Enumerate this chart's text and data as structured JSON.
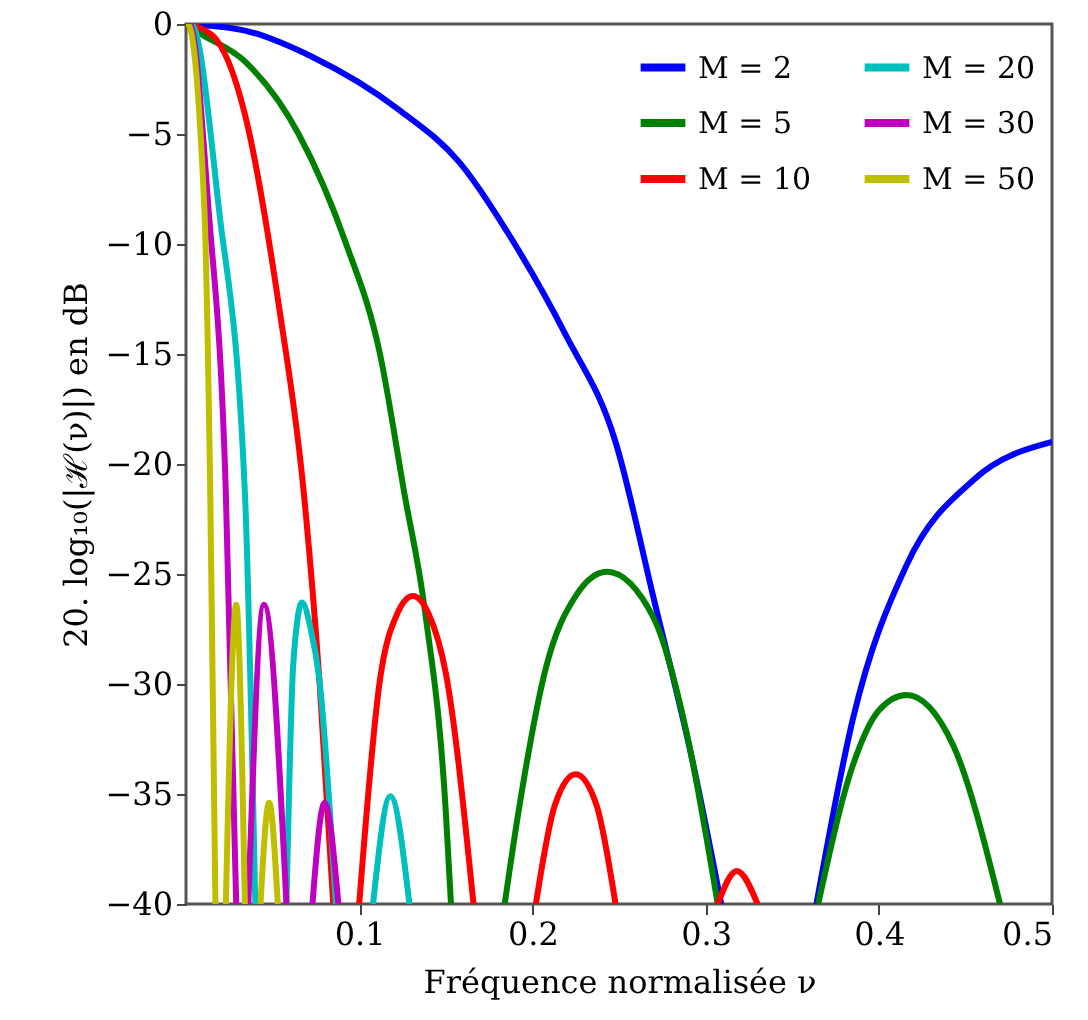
{
  "chart_data": {
    "type": "line",
    "xlabel": "Fréquence normalisée ν",
    "ylabel": "20. log₁₀(|ℋ(ν)|) en dB",
    "xlim": [
      0,
      0.5
    ],
    "ylim": [
      -40,
      0
    ],
    "xticks": [
      0.1,
      0.2,
      0.3,
      0.4,
      0.5
    ],
    "yticks": [
      0,
      -5,
      -10,
      -15,
      -20,
      -25,
      -30,
      -35,
      -40
    ],
    "grid": false,
    "legend": "top right",
    "marker": "none",
    "line_style": "solid",
    "series": [
      {
        "name": "M = 2",
        "color": "#0000ff",
        "x": [
          0,
          0.034,
          0.073,
          0.123,
          0.158,
          0.189,
          0.219,
          0.248,
          0.27,
          0.293,
          0.309,
          0.33,
          0.364,
          0.385,
          0.416,
          0.455,
          0.5
        ],
        "values": [
          0,
          -0.3,
          -1.5,
          -3.9,
          -6.3,
          -9.9,
          -14.1,
          -19,
          -26.1,
          -33.7,
          -40,
          null,
          -40,
          -31.6,
          -24.6,
          -20.7,
          -19
        ]
      },
      {
        "name": "M = 5",
        "color": "#008000",
        "x": [
          0,
          0.0075,
          0.034,
          0.065,
          0.092,
          0.112,
          0.126,
          0.138,
          0.15,
          0.153,
          0.17,
          0.184,
          0.192,
          0.208,
          0.225,
          0.243,
          0.27,
          0.289,
          0.307,
          0.33,
          0.365,
          0.385,
          0.4,
          0.416,
          0.443,
          0.47
        ],
        "values": [
          0,
          -0.4,
          -1.7,
          -5,
          -9.9,
          -15,
          -21.3,
          -26.7,
          -35.8,
          -40,
          null,
          -40,
          -35.8,
          -29.2,
          -26,
          -24.9,
          -27,
          -32.2,
          -40,
          null,
          -40,
          -33.7,
          -31.2,
          -30.5,
          -32.8,
          -40
        ]
      },
      {
        "name": "M = 10",
        "color": "#ff0000",
        "x": [
          0,
          0.015,
          0.034,
          0.054,
          0.068,
          0.077,
          0.085,
          0.092,
          0.1,
          0.112,
          0.122,
          0.131,
          0.14,
          0.15,
          0.166,
          0.185,
          0.202,
          0.213,
          0.225,
          0.237,
          0.248,
          0.28,
          0.307,
          0.318,
          0.33
        ],
        "values": [
          0,
          -0.5,
          -4.1,
          -13,
          -21.3,
          -29.8,
          -40,
          null,
          -40,
          -29.8,
          -26.8,
          -26,
          -26.8,
          -29.5,
          -40,
          null,
          -40,
          -35.5,
          -34.1,
          -35.5,
          -40,
          null,
          -40,
          -38.5,
          -40
        ]
      },
      {
        "name": "M = 20",
        "color": "#00bfbf",
        "x": [
          0,
          0.003,
          0.019,
          0.034,
          0.04,
          0.049,
          0.058,
          0.062,
          0.067,
          0.072,
          0.077,
          0.0865,
          0.097,
          0.108,
          0.118,
          0.129
        ],
        "values": [
          0,
          0,
          -8.4,
          -21.3,
          -40,
          null,
          -40,
          -29,
          -26.3,
          -27.5,
          -29.8,
          -40,
          null,
          -40,
          -35.1,
          -40
        ]
      },
      {
        "name": "M = 30",
        "color": "#bf00bf",
        "x": [
          0,
          0.002,
          0.013,
          0.023,
          0.029,
          0.032,
          0.036,
          0.045,
          0.058,
          0.065,
          0.073,
          0.08,
          0.088
        ],
        "values": [
          0,
          0,
          -8.4,
          -21.3,
          -40,
          null,
          -40,
          -26.4,
          -40,
          null,
          -40,
          -35.4,
          -40
        ]
      },
      {
        "name": "M = 50",
        "color": "#bfbf00",
        "x": [
          0,
          0.001,
          0.0106,
          0.014,
          0.017,
          0.02,
          0.023,
          0.029,
          0.034,
          0.038,
          0.043,
          0.048,
          0.053
        ],
        "values": [
          0,
          0,
          -8.4,
          -21.3,
          -40,
          null,
          -40,
          -26.4,
          -40,
          null,
          -40,
          -35.4,
          -40
        ]
      }
    ]
  }
}
